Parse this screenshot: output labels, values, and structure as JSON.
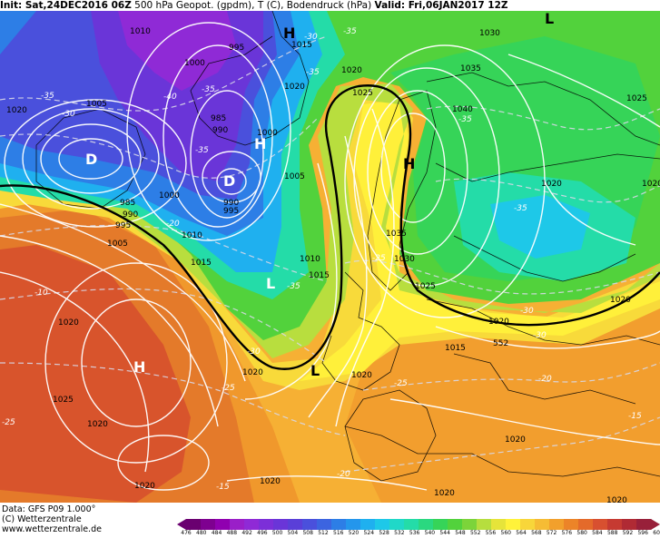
{
  "header": {
    "init": "Init: Sat,24DEC2016 06Z",
    "params": "500 hPa Geopot. (gpdm), T (C), Bodendruck (hPa)",
    "valid": "Valid: Fri,06JAN2017 12Z"
  },
  "footer": {
    "data_line": "Data: GFS P09 1.000°",
    "copyright": "(C) Wetterzentrale",
    "url": "www.wetterzentrale.de"
  },
  "legend": {
    "ticks": [
      "476",
      "480",
      "484",
      "488",
      "492",
      "496",
      "500",
      "504",
      "508",
      "512",
      "516",
      "520",
      "524",
      "528",
      "532",
      "536",
      "540",
      "544",
      "548",
      "552",
      "556",
      "560",
      "564",
      "568",
      "572",
      "576",
      "580",
      "584",
      "588",
      "592",
      "596",
      "600"
    ],
    "colors": [
      "#6a0070",
      "#7e0090",
      "#9000b0",
      "#9a1fc8",
      "#8f2ad6",
      "#7c2fd8",
      "#6a35d8",
      "#5a3fd8",
      "#4a50dc",
      "#3c64e0",
      "#2d7ee6",
      "#2496ec",
      "#1fb0ef",
      "#1ec8e8",
      "#20d8c8",
      "#24dca8",
      "#2ad880",
      "#36d458",
      "#52d23c",
      "#7cd43a",
      "#b6de3e",
      "#e6e43a",
      "#fff23a",
      "#f8d63a",
      "#f6bc34",
      "#f2a02c",
      "#ec8428",
      "#e46a2a",
      "#d85030",
      "#c63a32",
      "#b02a34",
      "#98203a"
    ]
  },
  "pressure_labels": [
    "1010",
    "995",
    "1000",
    "1005",
    "985",
    "990",
    "1000",
    "985",
    "990",
    "1000",
    "990",
    "995",
    "1005",
    "1000",
    "995",
    "1010",
    "1015",
    "1010",
    "1015",
    "1005",
    "1020",
    "1025",
    "1020",
    "1015",
    "1020",
    "1025",
    "1030",
    "1035",
    "1040",
    "1025",
    "1030",
    "1035",
    "1025",
    "1030",
    "1020",
    "1020",
    "1020",
    "1015",
    "1020",
    "1020",
    "1025",
    "1020",
    "1020",
    "1025",
    "1020",
    "1020",
    "1020",
    "1020",
    "1020",
    "1020",
    "1015",
    "1020"
  ],
  "temp_labels": [
    "-30",
    "-35",
    "-35",
    "-35",
    "-30",
    "-35",
    "-40",
    "-35",
    "-35",
    "-35",
    "-30",
    "-35",
    "-20",
    "-25",
    "-30",
    "-30",
    "-25",
    "-25",
    "-35",
    "-35",
    "-30",
    "-25",
    "-20",
    "-15",
    "-10",
    "-15",
    "-20",
    "-25",
    "-25",
    "-20",
    "-35",
    "-15"
  ],
  "pressure_centers": [
    "H",
    "H",
    "H",
    "L",
    "L",
    "L",
    "L",
    "D",
    "H",
    "L",
    "L"
  ],
  "contour_552": "552"
}
